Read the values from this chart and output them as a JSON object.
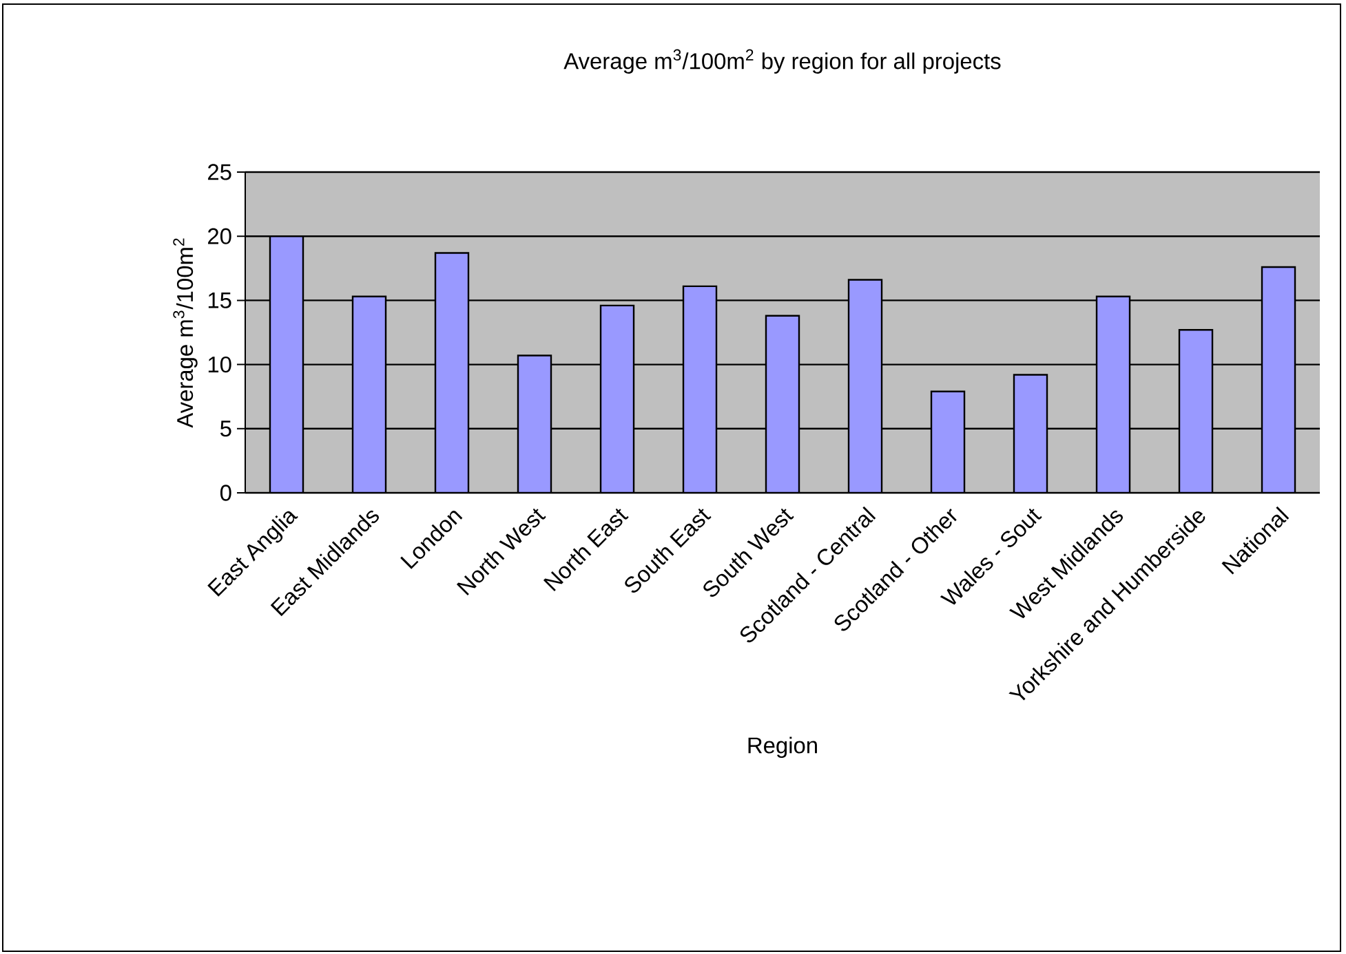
{
  "chart_data": {
    "type": "bar",
    "title": "Average m$^{3}$/100m$^{2}$ by region for all projects",
    "xlabel": "Region",
    "ylabel": "Average m$^{3}$/100m$^{2}$",
    "categories": [
      "East Anglia",
      "East Midlands",
      "London",
      "North West",
      "North East",
      "South East",
      "South West",
      "Scotland - Central",
      "Scotland - Other",
      "Wales - Sout",
      "West Midlands",
      "Yorkshire and Humberside",
      "National"
    ],
    "values": [
      20.0,
      15.3,
      18.7,
      10.7,
      14.6,
      16.1,
      13.8,
      16.6,
      7.9,
      9.2,
      15.3,
      12.7,
      17.6
    ],
    "color": "#9999ff",
    "ylim": [
      0,
      25
    ],
    "yticks": [
      0,
      5,
      10,
      15,
      20,
      25
    ],
    "grid": "y"
  }
}
